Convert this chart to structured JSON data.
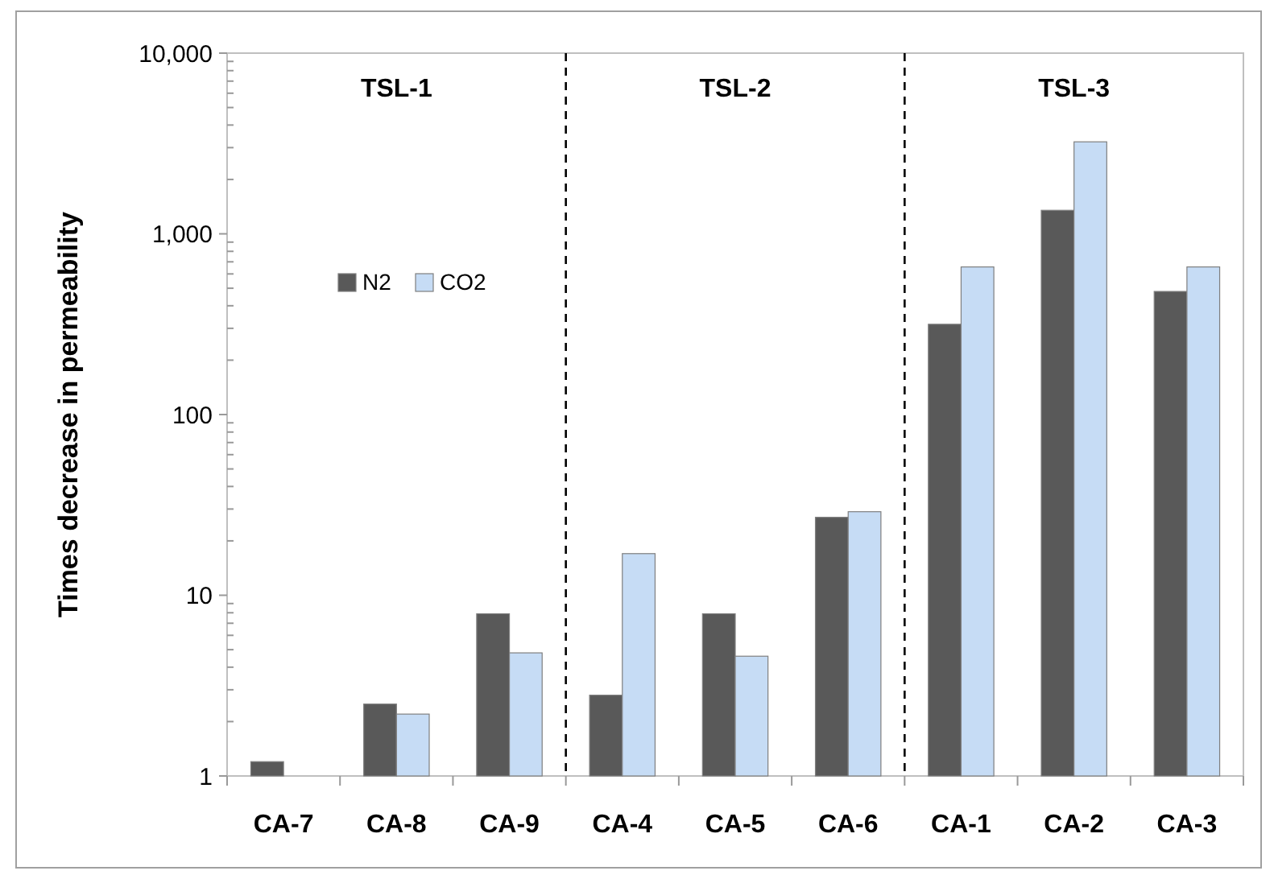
{
  "chart_data": {
    "type": "bar",
    "ylabel": "Times decrease in permeability",
    "categories": [
      "CA-7",
      "CA-8",
      "CA-9",
      "CA-4",
      "CA-5",
      "CA-6",
      "CA-1",
      "CA-2",
      "CA-3"
    ],
    "series": [
      {
        "name": "N2",
        "color": "#595959",
        "values": [
          1.2,
          2.5,
          7.9,
          2.8,
          7.9,
          27,
          316,
          1350,
          480
        ]
      },
      {
        "name": "CO2",
        "color": "#c6dcf5",
        "values": [
          null,
          2.2,
          4.8,
          17,
          4.6,
          29,
          656,
          3230,
          656
        ]
      }
    ],
    "log": true,
    "ylim": [
      1,
      10000
    ],
    "yticks": [
      {
        "value": 1,
        "label": "1"
      },
      {
        "value": 2,
        "label": null
      },
      {
        "value": 3,
        "label": null
      },
      {
        "value": 4,
        "label": null
      },
      {
        "value": 5,
        "label": null
      },
      {
        "value": 6,
        "label": null
      },
      {
        "value": 7,
        "label": null
      },
      {
        "value": 8,
        "label": null
      },
      {
        "value": 9,
        "label": null
      },
      {
        "value": 10,
        "label": "10"
      },
      {
        "value": 20,
        "label": null
      },
      {
        "value": 30,
        "label": null
      },
      {
        "value": 40,
        "label": null
      },
      {
        "value": 50,
        "label": null
      },
      {
        "value": 60,
        "label": null
      },
      {
        "value": 70,
        "label": null
      },
      {
        "value": 80,
        "label": null
      },
      {
        "value": 90,
        "label": null
      },
      {
        "value": 100,
        "label": "100"
      },
      {
        "value": 200,
        "label": null
      },
      {
        "value": 300,
        "label": null
      },
      {
        "value": 400,
        "label": null
      },
      {
        "value": 500,
        "label": null
      },
      {
        "value": 600,
        "label": null
      },
      {
        "value": 700,
        "label": null
      },
      {
        "value": 800,
        "label": null
      },
      {
        "value": 900,
        "label": null
      },
      {
        "value": 1000,
        "label": "1,000"
      },
      {
        "value": 2000,
        "label": null
      },
      {
        "value": 3000,
        "label": null
      },
      {
        "value": 4000,
        "label": null
      },
      {
        "value": 5000,
        "label": null
      },
      {
        "value": 6000,
        "label": null
      },
      {
        "value": 7000,
        "label": null
      },
      {
        "value": 8000,
        "label": null
      },
      {
        "value": 9000,
        "label": null
      },
      {
        "value": 10000,
        "label": "10,000"
      }
    ],
    "annotations": [
      "TSL-1",
      "TSL-2",
      "TSL-3"
    ],
    "legend": "top left",
    "grid": false
  }
}
